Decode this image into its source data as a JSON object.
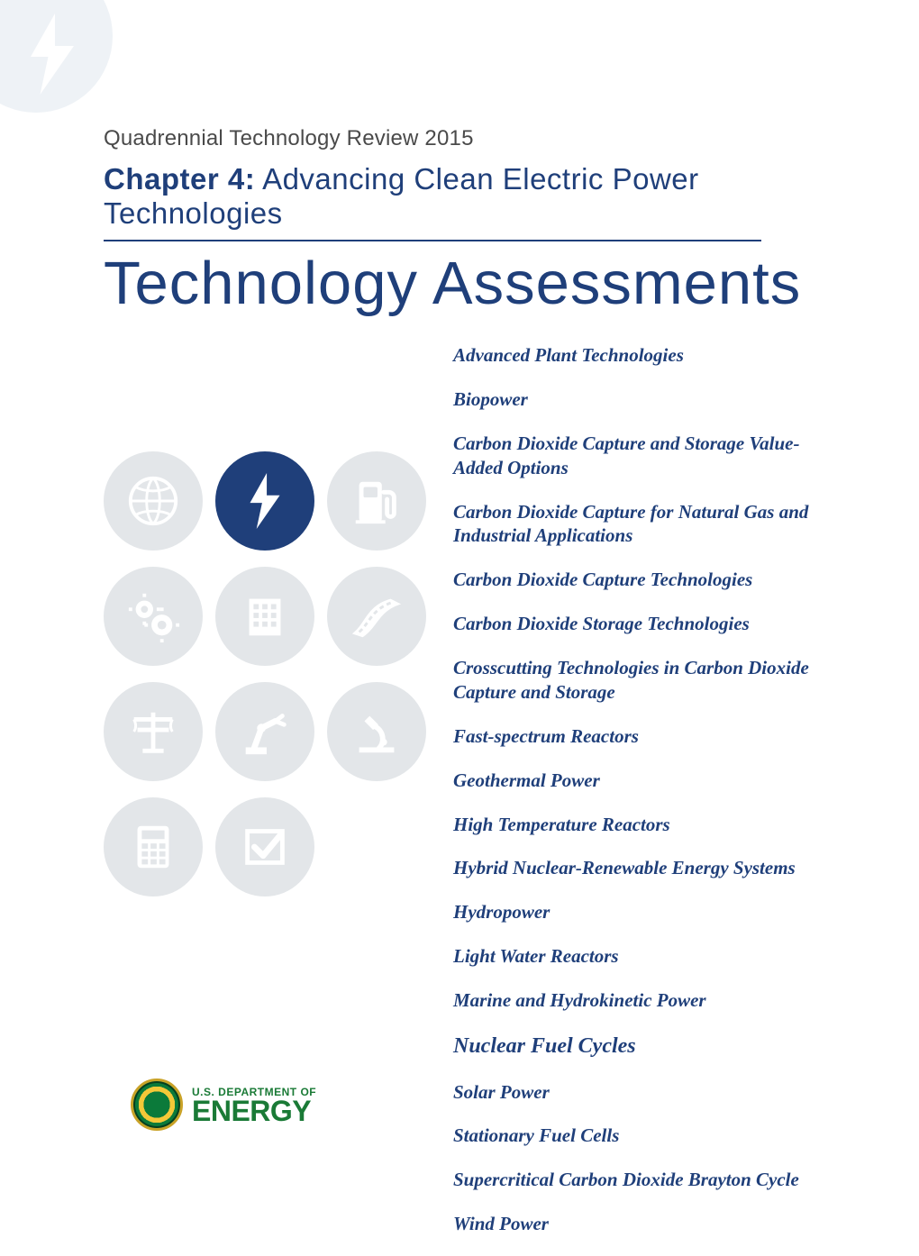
{
  "colors": {
    "brand_blue": "#1f3f7a",
    "muted_chip": "#e3e6e9",
    "corner_tint": "#eef2f6",
    "doe_green": "#1a7a36",
    "text_gray": "#4a4a4a",
    "background": "#ffffff"
  },
  "header": {
    "pretitle": "Quadrennial Technology Review 2015",
    "chapter_label": "Chapter 4:",
    "chapter_title": "Advancing Clean Electric Power Technologies",
    "main_title": "Technology Assessments"
  },
  "icons": [
    {
      "name": "globe-icon",
      "active": false
    },
    {
      "name": "bolt-icon",
      "active": true
    },
    {
      "name": "fuel-pump-icon",
      "active": false
    },
    {
      "name": "gears-icon",
      "active": false
    },
    {
      "name": "building-icon",
      "active": false
    },
    {
      "name": "road-icon",
      "active": false
    },
    {
      "name": "power-line-icon",
      "active": false
    },
    {
      "name": "robot-arm-icon",
      "active": false
    },
    {
      "name": "microscope-icon",
      "active": false
    },
    {
      "name": "calculator-icon",
      "active": false
    },
    {
      "name": "checkbox-icon",
      "active": false
    }
  ],
  "topics": [
    {
      "label": "Advanced Plant Technologies",
      "current": false
    },
    {
      "label": "Biopower",
      "current": false
    },
    {
      "label": "Carbon Dioxide Capture and Storage Value-Added Options",
      "current": false
    },
    {
      "label": "Carbon Dioxide Capture for Natural Gas and Industrial Applications",
      "current": false
    },
    {
      "label": "Carbon Dioxide Capture Technologies",
      "current": false
    },
    {
      "label": "Carbon Dioxide Storage Technologies",
      "current": false
    },
    {
      "label": "Crosscutting Technologies in Carbon Dioxide Capture and Storage",
      "current": false
    },
    {
      "label": "Fast-spectrum Reactors",
      "current": false
    },
    {
      "label": "Geothermal Power",
      "current": false
    },
    {
      "label": "High Temperature Reactors",
      "current": false
    },
    {
      "label": "Hybrid Nuclear-Renewable Energy Systems",
      "current": false
    },
    {
      "label": "Hydropower",
      "current": false
    },
    {
      "label": "Light Water Reactors",
      "current": false
    },
    {
      "label": "Marine and Hydrokinetic Power",
      "current": false
    },
    {
      "label": "Nuclear Fuel Cycles",
      "current": true
    },
    {
      "label": "Solar Power",
      "current": false
    },
    {
      "label": "Stationary Fuel Cells",
      "current": false
    },
    {
      "label": "Supercritical Carbon Dioxide Brayton Cycle",
      "current": false
    },
    {
      "label": "Wind Power",
      "current": false
    }
  ],
  "logo": {
    "line1": "U.S. DEPARTMENT OF",
    "line2": "ENERGY"
  }
}
